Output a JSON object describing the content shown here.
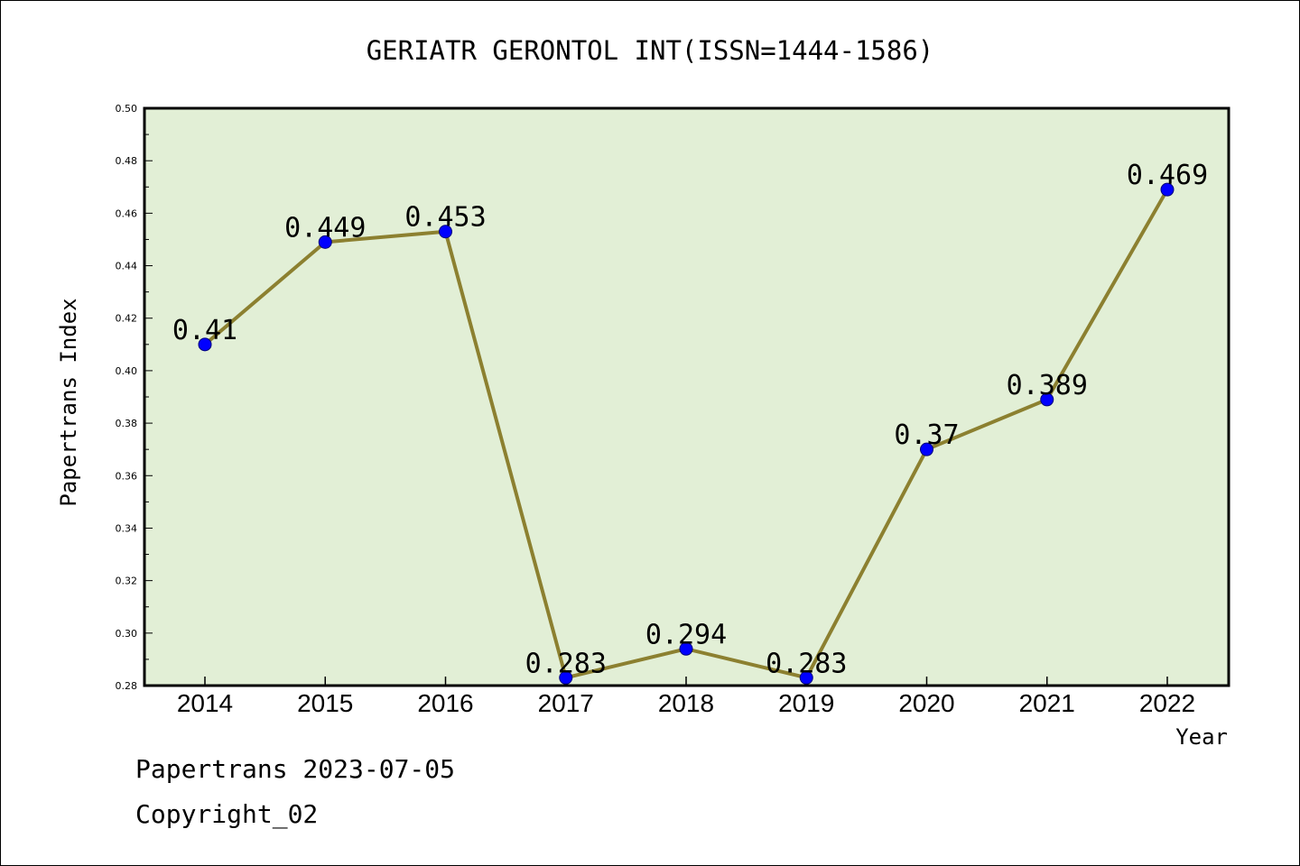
{
  "chart_data": {
    "type": "line",
    "title": "GERIATR GERONTOL INT(ISSN=1444-1586)",
    "xlabel": "Year",
    "ylabel": "Papertrans Index",
    "categories": [
      "2014",
      "2015",
      "2016",
      "2017",
      "2018",
      "2019",
      "2020",
      "2021",
      "2022"
    ],
    "values": [
      0.41,
      0.449,
      0.453,
      0.283,
      0.294,
      0.283,
      0.37,
      0.389,
      0.469
    ],
    "data_labels": [
      "0.41",
      "0.449",
      "0.453",
      "0.283",
      "0.294",
      "0.283",
      "0.37",
      "0.389",
      "0.469"
    ],
    "ylim": [
      0.28,
      0.5
    ],
    "yticks": [
      "0.28",
      "0.30",
      "0.32",
      "0.34",
      "0.36",
      "0.38",
      "0.40",
      "0.42",
      "0.44",
      "0.46",
      "0.48",
      "0.50"
    ],
    "grid": false,
    "colors": {
      "plot_background": "#e2efd6",
      "line": "#8c8030",
      "marker": "#0000ff"
    }
  },
  "footer": {
    "line1": "Papertrans 2023-07-05",
    "line2": "Copyright_02"
  }
}
